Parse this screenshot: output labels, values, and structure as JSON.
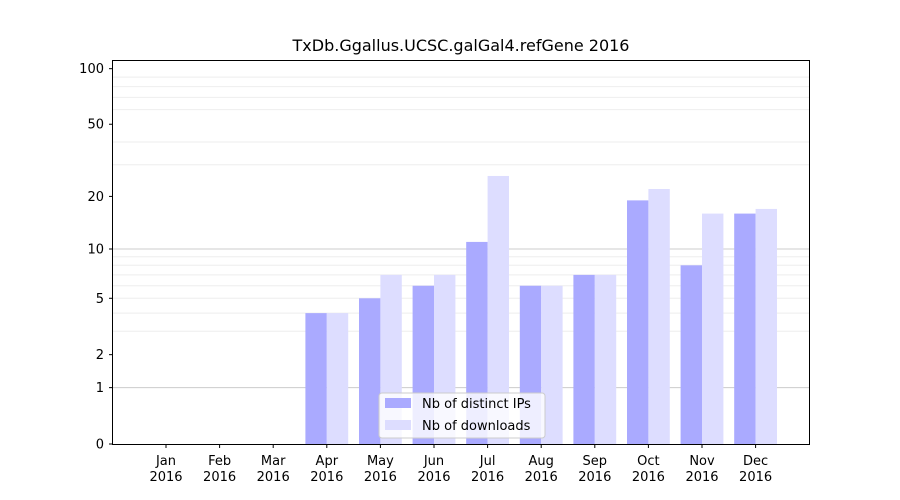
{
  "chart_data": {
    "type": "bar",
    "title": "TxDb.Ggallus.UCSC.galGal4.refGene 2016",
    "xlabel": "",
    "ylabel": "",
    "yscale": "log(1+y)",
    "ylim": [
      0,
      110
    ],
    "yticks": [
      0,
      1,
      2,
      5,
      10,
      20,
      50,
      100
    ],
    "categories": [
      [
        "Jan",
        "2016"
      ],
      [
        "Feb",
        "2016"
      ],
      [
        "Mar",
        "2016"
      ],
      [
        "Apr",
        "2016"
      ],
      [
        "May",
        "2016"
      ],
      [
        "Jun",
        "2016"
      ],
      [
        "Jul",
        "2016"
      ],
      [
        "Aug",
        "2016"
      ],
      [
        "Sep",
        "2016"
      ],
      [
        "Oct",
        "2016"
      ],
      [
        "Nov",
        "2016"
      ],
      [
        "Dec",
        "2016"
      ]
    ],
    "series": [
      {
        "name": "Nb of distinct IPs",
        "color": "#aaaaff",
        "values": [
          0,
          0,
          0,
          4,
          5,
          6,
          11,
          6,
          7,
          19,
          8,
          16
        ]
      },
      {
        "name": "Nb of downloads",
        "color": "#ddddff",
        "values": [
          0,
          0,
          0,
          4,
          7,
          7,
          26,
          6,
          7,
          22,
          16,
          17
        ]
      }
    ],
    "legend": "lower-center",
    "grid": "horizontal"
  }
}
